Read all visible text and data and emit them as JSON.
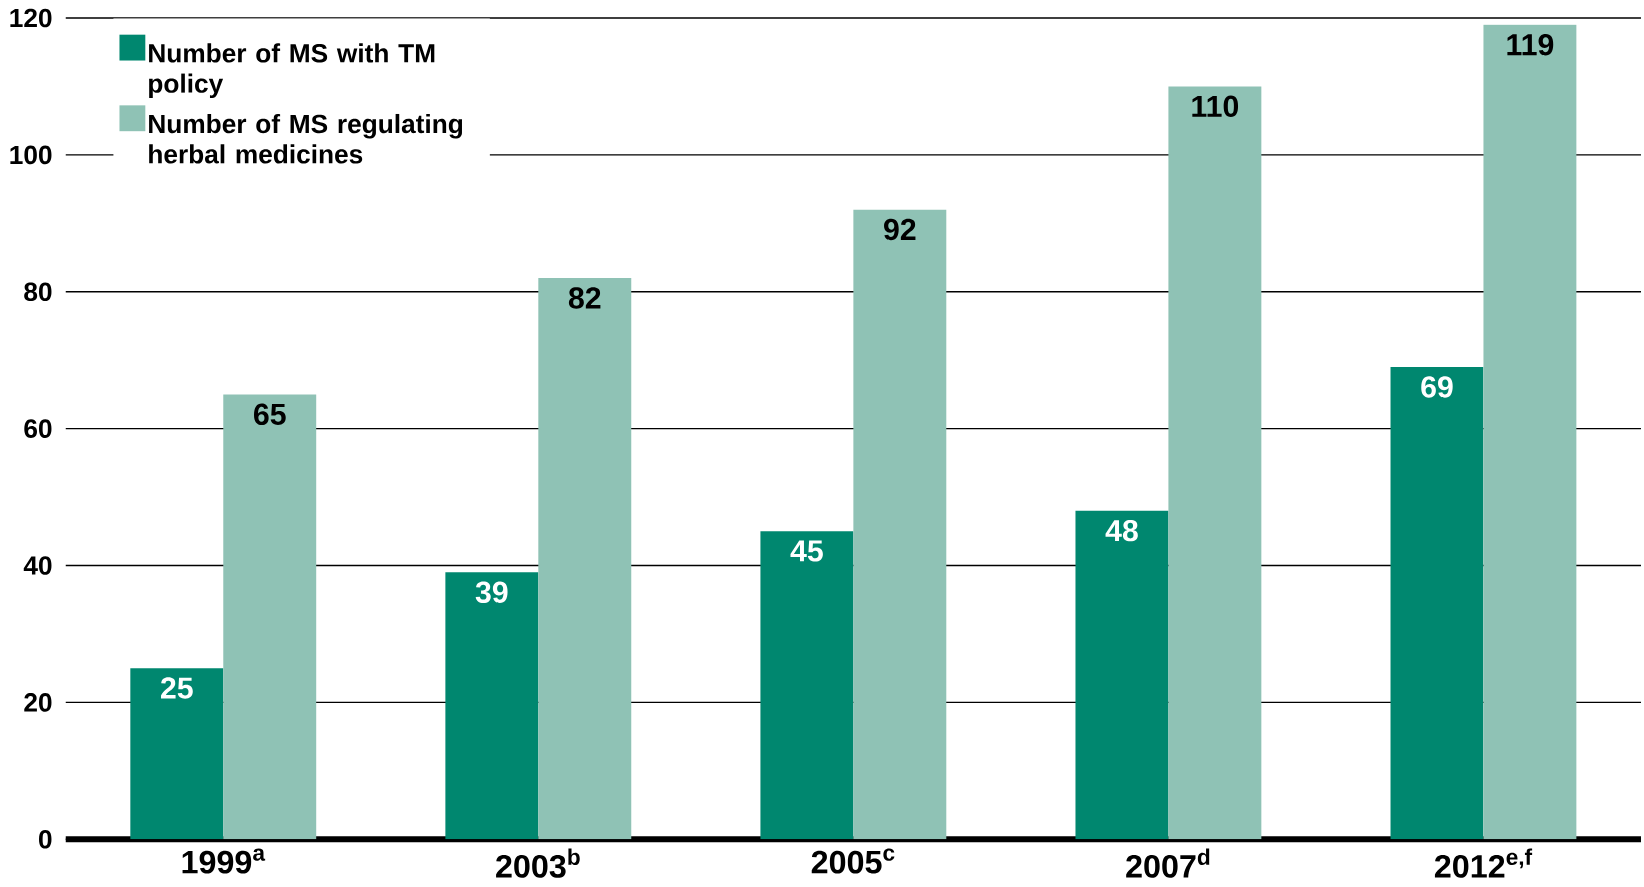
{
  "chart_data": {
    "type": "bar",
    "categories": [
      "1999$^{a}$",
      "2003$^{b}$",
      "2005$^{c}$",
      "2007$^{d}$",
      "2012$^{e,f}$"
    ],
    "series": [
      {
        "name": "Number of MS with TM policy",
        "color": "#00876f",
        "values": [
          25,
          39,
          45,
          48,
          69
        ]
      },
      {
        "name": "Number of MS regulating herbal medicines",
        "color": "#8fc2b5",
        "values": [
          65,
          82,
          92,
          110,
          119
        ]
      }
    ],
    "ylim": [
      0,
      120
    ],
    "yticks": [
      0,
      20,
      40,
      60,
      80,
      100,
      120
    ],
    "grid": "y",
    "legend": "top left",
    "data_labels": true
  }
}
